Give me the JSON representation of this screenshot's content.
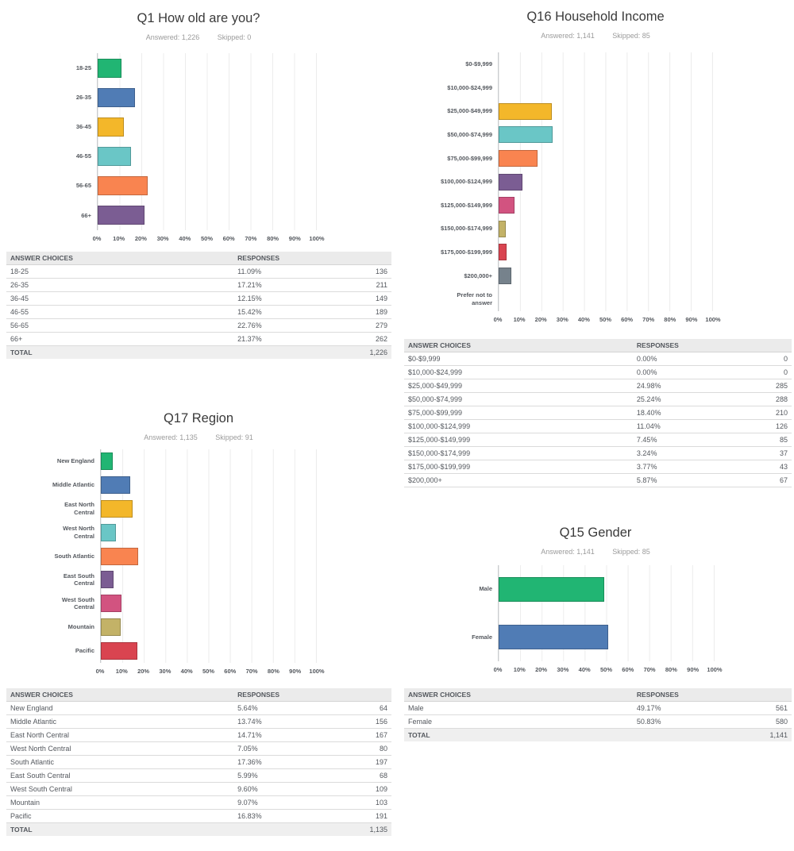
{
  "ticks": [
    "0%",
    "10%",
    "20%",
    "30%",
    "40%",
    "50%",
    "60%",
    "70%",
    "80%",
    "90%",
    "100%"
  ],
  "palette": {
    "green": "#21b573",
    "blue": "#507cb5",
    "yellow": "#f3b72a",
    "teal": "#6ac6c6",
    "orange": "#f98450",
    "purple": "#7b5d93",
    "pink": "#d25380",
    "khaki": "#c3b267",
    "red": "#d94450",
    "gray": "#76828c"
  },
  "chart_data": [
    {
      "id": "q1",
      "type": "bar",
      "orientation": "horizontal",
      "title": "Q1 How old are you?",
      "answered": 1226,
      "skipped": 0,
      "categories": [
        "18-25",
        "26-35",
        "36-45",
        "46-55",
        "56-65",
        "66+"
      ],
      "values": [
        11.09,
        17.21,
        12.15,
        15.42,
        22.76,
        21.37
      ],
      "counts": [
        136,
        211,
        149,
        189,
        279,
        262
      ],
      "total": 1226,
      "xlim": [
        0,
        100
      ],
      "x_ticks": [
        0,
        10,
        20,
        30,
        40,
        50,
        60,
        70,
        80,
        90,
        100
      ],
      "x_tick_suffix": "%",
      "grid": true,
      "legend": false,
      "colors": [
        "#21b573",
        "#507cb5",
        "#f3b72a",
        "#6ac6c6",
        "#f98450",
        "#7b5d93"
      ]
    },
    {
      "id": "q16",
      "type": "bar",
      "orientation": "horizontal",
      "title": "Q16 Household Income",
      "answered": 1141,
      "skipped": 85,
      "categories": [
        "$0-$9,999",
        "$10,000-$24,999",
        "$25,000-$49,999",
        "$50,000-$74,999",
        "$75,000-$99,999",
        "$100,000-$124,999",
        "$125,000-$149,999",
        "$150,000-$174,999",
        "$175,000-$199,999",
        "$200,000+",
        "Prefer not to answer"
      ],
      "values": [
        0,
        0,
        24.98,
        25.24,
        18.4,
        11.04,
        7.45,
        3.24,
        3.77,
        5.87,
        0
      ],
      "counts": [
        0,
        0,
        285,
        288,
        210,
        126,
        85,
        37,
        43,
        67,
        null
      ],
      "xlim": [
        0,
        100
      ],
      "x_ticks": [
        0,
        10,
        20,
        30,
        40,
        50,
        60,
        70,
        80,
        90,
        100
      ],
      "x_tick_suffix": "%",
      "grid": true,
      "legend": false,
      "colors": [
        "#21b573",
        "#507cb5",
        "#f3b72a",
        "#6ac6c6",
        "#f98450",
        "#7b5d93",
        "#d25380",
        "#c3b267",
        "#d94450",
        "#76828c",
        "#21b573"
      ]
    },
    {
      "id": "q17",
      "type": "bar",
      "orientation": "horizontal",
      "title": "Q17 Region",
      "answered": 1135,
      "skipped": 91,
      "categories": [
        "New England",
        "Middle Atlantic",
        "East North Central",
        "West North Central",
        "South Atlantic",
        "East South Central",
        "West South Central",
        "Mountain",
        "Pacific"
      ],
      "values": [
        5.64,
        13.74,
        14.71,
        7.05,
        17.36,
        5.99,
        9.6,
        9.07,
        16.83
      ],
      "counts": [
        64,
        156,
        167,
        80,
        197,
        68,
        109,
        103,
        191
      ],
      "total": 1135,
      "xlim": [
        0,
        100
      ],
      "x_ticks": [
        0,
        10,
        20,
        30,
        40,
        50,
        60,
        70,
        80,
        90,
        100
      ],
      "x_tick_suffix": "%",
      "grid": true,
      "legend": false,
      "colors": [
        "#21b573",
        "#507cb5",
        "#f3b72a",
        "#6ac6c6",
        "#f98450",
        "#7b5d93",
        "#d25380",
        "#c3b267",
        "#d94450"
      ]
    },
    {
      "id": "q15",
      "type": "bar",
      "orientation": "horizontal",
      "title": "Q15 Gender",
      "answered": 1141,
      "skipped": 85,
      "categories": [
        "Male",
        "Female"
      ],
      "values": [
        49.17,
        50.83
      ],
      "counts": [
        561,
        580
      ],
      "total": 1141,
      "xlim": [
        0,
        100
      ],
      "x_ticks": [
        0,
        10,
        20,
        30,
        40,
        50,
        60,
        70,
        80,
        90,
        100
      ],
      "x_tick_suffix": "%",
      "grid": true,
      "legend": false,
      "colors": [
        "#21b573",
        "#507cb5"
      ]
    }
  ],
  "questions": {
    "q1": {
      "title": "Q1 How old are you?",
      "answered_label": "Answered: 1,226",
      "skipped_label": "Skipped: 0",
      "table": {
        "answer_header": "ANSWER CHOICES",
        "responses_header": "RESPONSES",
        "rows": [
          {
            "label": "18-25",
            "percent": "11.09%",
            "count": "136"
          },
          {
            "label": "26-35",
            "percent": "17.21%",
            "count": "211"
          },
          {
            "label": "36-45",
            "percent": "12.15%",
            "count": "149"
          },
          {
            "label": "46-55",
            "percent": "15.42%",
            "count": "189"
          },
          {
            "label": "56-65",
            "percent": "22.76%",
            "count": "279"
          },
          {
            "label": "66+",
            "percent": "21.37%",
            "count": "262"
          }
        ],
        "total_label": "TOTAL",
        "total_count": "1,226"
      }
    },
    "q16": {
      "title": "Q16 Household Income",
      "answered_label": "Answered: 1,141",
      "skipped_label": "Skipped: 85",
      "table": {
        "answer_header": "ANSWER CHOICES",
        "responses_header": "RESPONSES",
        "rows": [
          {
            "label": "$0-$9,999",
            "percent": "0.00%",
            "count": "0"
          },
          {
            "label": "$10,000-$24,999",
            "percent": "0.00%",
            "count": "0"
          },
          {
            "label": "$25,000-$49,999",
            "percent": "24.98%",
            "count": "285"
          },
          {
            "label": "$50,000-$74,999",
            "percent": "25.24%",
            "count": "288"
          },
          {
            "label": "$75,000-$99,999",
            "percent": "18.40%",
            "count": "210"
          },
          {
            "label": "$100,000-$124,999",
            "percent": "11.04%",
            "count": "126"
          },
          {
            "label": "$125,000-$149,999",
            "percent": "7.45%",
            "count": "85"
          },
          {
            "label": "$150,000-$174,999",
            "percent": "3.24%",
            "count": "37"
          },
          {
            "label": "$175,000-$199,999",
            "percent": "3.77%",
            "count": "43"
          },
          {
            "label": "$200,000+",
            "percent": "5.87%",
            "count": "67"
          }
        ]
      }
    },
    "q17": {
      "title": "Q17 Region",
      "answered_label": "Answered: 1,135",
      "skipped_label": "Skipped: 91",
      "table": {
        "answer_header": "ANSWER CHOICES",
        "responses_header": "RESPONSES",
        "rows": [
          {
            "label": "New England",
            "percent": "5.64%",
            "count": "64"
          },
          {
            "label": "Middle Atlantic",
            "percent": "13.74%",
            "count": "156"
          },
          {
            "label": "East North Central",
            "percent": "14.71%",
            "count": "167"
          },
          {
            "label": "West North Central",
            "percent": "7.05%",
            "count": "80"
          },
          {
            "label": "South Atlantic",
            "percent": "17.36%",
            "count": "197"
          },
          {
            "label": "East South Central",
            "percent": "5.99%",
            "count": "68"
          },
          {
            "label": "West South Central",
            "percent": "9.60%",
            "count": "109"
          },
          {
            "label": "Mountain",
            "percent": "9.07%",
            "count": "103"
          },
          {
            "label": "Pacific",
            "percent": "16.83%",
            "count": "191"
          }
        ],
        "total_label": "TOTAL",
        "total_count": "1,135"
      }
    },
    "q15": {
      "title": "Q15 Gender",
      "answered_label": "Answered: 1,141",
      "skipped_label": "Skipped: 85",
      "table": {
        "answer_header": "ANSWER CHOICES",
        "responses_header": "RESPONSES",
        "rows": [
          {
            "label": "Male",
            "percent": "49.17%",
            "count": "561"
          },
          {
            "label": "Female",
            "percent": "50.83%",
            "count": "580"
          }
        ],
        "total_label": "TOTAL",
        "total_count": "1,141"
      }
    }
  }
}
